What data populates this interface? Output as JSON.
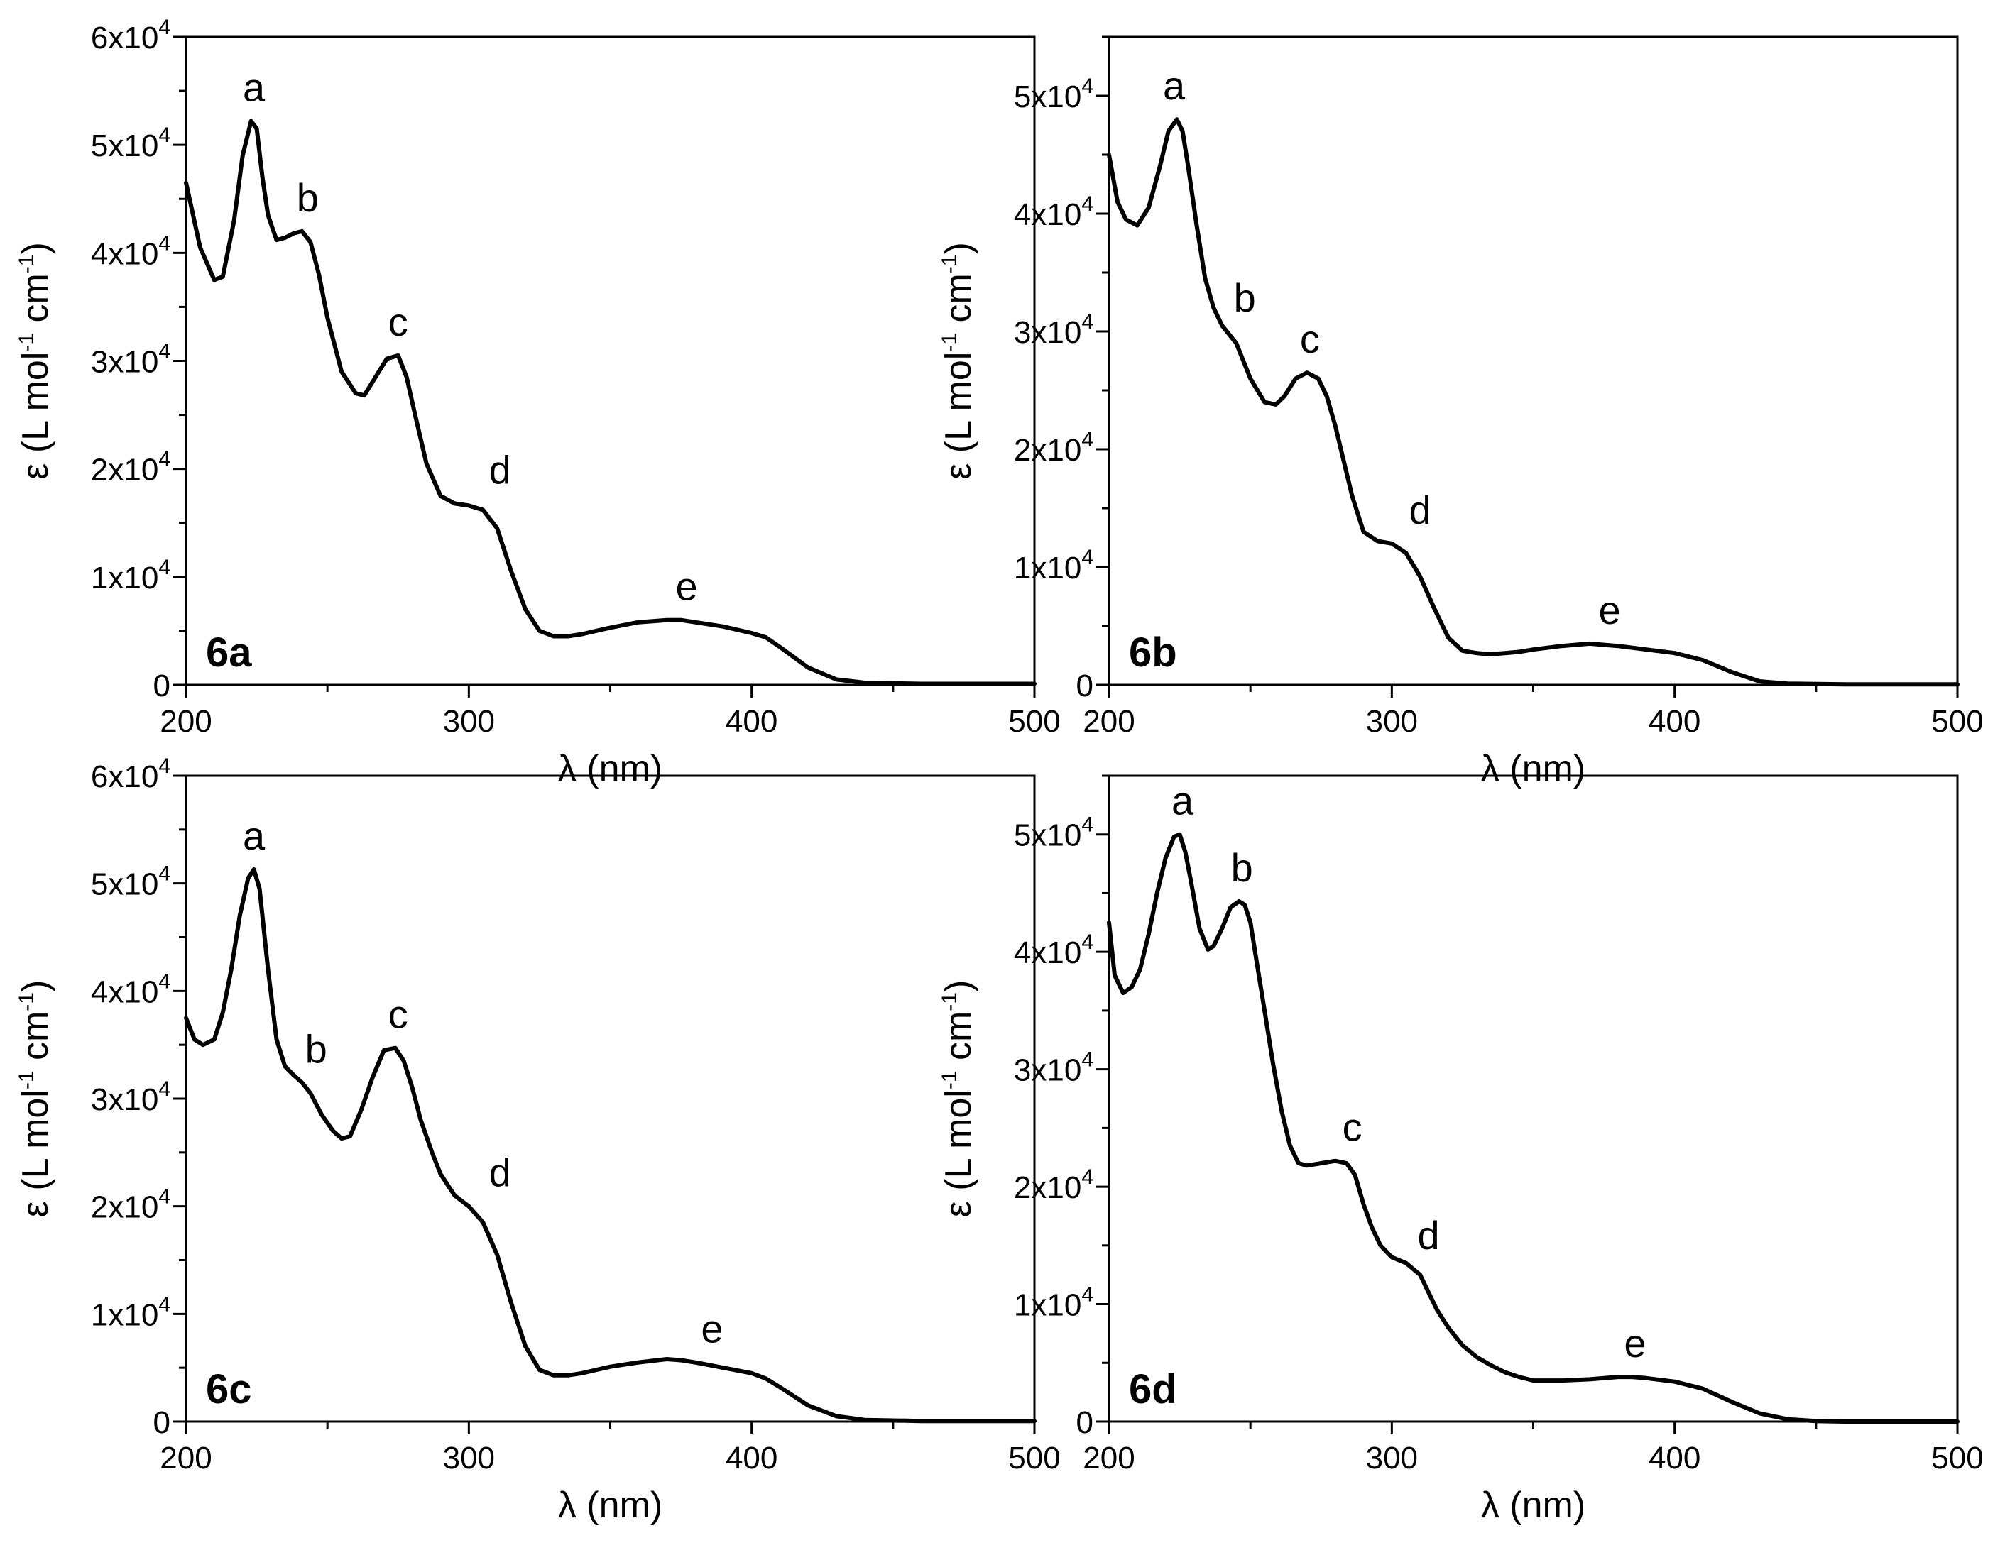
{
  "chart_data": [
    {
      "type": "line",
      "panel_label": "6a",
      "xlabel": "λ (nm)",
      "ylabel": "ε (L mol-1 cm-1)",
      "xlim": [
        200,
        500
      ],
      "ylim": [
        0,
        60000
      ],
      "x_ticks": [
        "200",
        "300",
        "400",
        "500"
      ],
      "y_ticks": [
        {
          "value": 0,
          "mant": "0",
          "exp": ""
        },
        {
          "value": 10000,
          "mant": "1x10",
          "exp": "4"
        },
        {
          "value": 20000,
          "mant": "2x10",
          "exp": "4"
        },
        {
          "value": 30000,
          "mant": "3x10",
          "exp": "4"
        },
        {
          "value": 40000,
          "mant": "4x10",
          "exp": "4"
        },
        {
          "value": 50000,
          "mant": "5x10",
          "exp": "4"
        },
        {
          "value": 60000,
          "mant": "6x10",
          "exp": "4"
        }
      ],
      "series": [
        {
          "name": "6a",
          "x": [
            200,
            205,
            210,
            213,
            217,
            220,
            223,
            225,
            227,
            229,
            232,
            235,
            238,
            241,
            244,
            247,
            250,
            255,
            260,
            263,
            267,
            271,
            275,
            278,
            281,
            285,
            290,
            295,
            300,
            305,
            310,
            315,
            320,
            325,
            330,
            335,
            340,
            345,
            350,
            360,
            370,
            375,
            380,
            390,
            400,
            405,
            410,
            420,
            430,
            440,
            450,
            460,
            480,
            500
          ],
          "y": [
            46500,
            40500,
            37500,
            37800,
            43000,
            49000,
            52200,
            51500,
            47000,
            43500,
            41200,
            41400,
            41800,
            42000,
            41000,
            38000,
            34000,
            29000,
            27000,
            26800,
            28500,
            30200,
            30500,
            28500,
            25000,
            20500,
            17500,
            16800,
            16600,
            16200,
            14500,
            10500,
            7000,
            5000,
            4500,
            4500,
            4700,
            5000,
            5300,
            5800,
            6000,
            6000,
            5800,
            5400,
            4800,
            4400,
            3500,
            1600,
            500,
            200,
            150,
            100,
            100,
            100
          ]
        }
      ],
      "annotations": [
        {
          "text": "a",
          "x": 224,
          "y": 52200
        },
        {
          "text": "b",
          "x": 243,
          "y": 42000
        },
        {
          "text": "c",
          "x": 275,
          "y": 30500
        },
        {
          "text": "d",
          "x": 311,
          "y": 16800
        },
        {
          "text": "e",
          "x": 377,
          "y": 6000
        }
      ]
    },
    {
      "type": "line",
      "panel_label": "6b",
      "xlabel": "λ (nm)",
      "ylabel": "ε (L mol-1 cm-1)",
      "xlim": [
        200,
        500
      ],
      "ylim": [
        0,
        55000
      ],
      "x_ticks": [
        "200",
        "300",
        "400",
        "500"
      ],
      "y_ticks": [
        {
          "value": 0,
          "mant": "0",
          "exp": ""
        },
        {
          "value": 10000,
          "mant": "1x10",
          "exp": "4"
        },
        {
          "value": 20000,
          "mant": "2x10",
          "exp": "4"
        },
        {
          "value": 30000,
          "mant": "3x10",
          "exp": "4"
        },
        {
          "value": 40000,
          "mant": "4x10",
          "exp": "4"
        },
        {
          "value": 50000,
          "mant": "5x10",
          "exp": "4"
        }
      ],
      "series": [
        {
          "name": "6b",
          "x": [
            200,
            203,
            206,
            210,
            214,
            218,
            221,
            224,
            226,
            228,
            231,
            234,
            237,
            240,
            245,
            250,
            255,
            259,
            262,
            266,
            270,
            274,
            277,
            280,
            283,
            286,
            290,
            295,
            300,
            305,
            310,
            315,
            320,
            325,
            330,
            335,
            340,
            345,
            350,
            360,
            370,
            375,
            380,
            390,
            400,
            410,
            420,
            430,
            440,
            460,
            480,
            500
          ],
          "y": [
            45000,
            41000,
            39500,
            39000,
            40500,
            44000,
            47000,
            48000,
            47000,
            44000,
            39000,
            34500,
            32000,
            30500,
            29000,
            26000,
            24000,
            23800,
            24500,
            26000,
            26500,
            26000,
            24500,
            22000,
            19000,
            16000,
            13000,
            12200,
            12000,
            11200,
            9200,
            6500,
            4000,
            2900,
            2700,
            2600,
            2700,
            2800,
            3000,
            3300,
            3500,
            3400,
            3300,
            3000,
            2700,
            2100,
            1100,
            300,
            100,
            50,
            50,
            50
          ]
        }
      ],
      "annotations": [
        {
          "text": "a",
          "x": 223,
          "y": 48000
        },
        {
          "text": "b",
          "x": 248,
          "y": 30000
        },
        {
          "text": "c",
          "x": 271,
          "y": 26500
        },
        {
          "text": "d",
          "x": 310,
          "y": 12000
        },
        {
          "text": "e",
          "x": 377,
          "y": 3500
        }
      ]
    },
    {
      "type": "line",
      "panel_label": "6c",
      "xlabel": "λ (nm)",
      "ylabel": "ε (L mol-1 cm-1)",
      "xlim": [
        200,
        500
      ],
      "ylim": [
        0,
        60000
      ],
      "x_ticks": [
        "200",
        "300",
        "400",
        "500"
      ],
      "y_ticks": [
        {
          "value": 0,
          "mant": "0",
          "exp": ""
        },
        {
          "value": 10000,
          "mant": "1x10",
          "exp": "4"
        },
        {
          "value": 20000,
          "mant": "2x10",
          "exp": "4"
        },
        {
          "value": 30000,
          "mant": "3x10",
          "exp": "4"
        },
        {
          "value": 40000,
          "mant": "4x10",
          "exp": "4"
        },
        {
          "value": 50000,
          "mant": "5x10",
          "exp": "4"
        },
        {
          "value": 60000,
          "mant": "6x10",
          "exp": "4"
        }
      ],
      "series": [
        {
          "name": "6c",
          "x": [
            200,
            203,
            206,
            210,
            213,
            216,
            219,
            222,
            224,
            226,
            229,
            232,
            235,
            238,
            241,
            244,
            248,
            252,
            255,
            258,
            262,
            266,
            270,
            274,
            277,
            280,
            283,
            287,
            290,
            295,
            300,
            305,
            310,
            315,
            320,
            325,
            330,
            335,
            340,
            345,
            350,
            360,
            370,
            375,
            380,
            390,
            400,
            405,
            410,
            420,
            430,
            440,
            460,
            480,
            500
          ],
          "y": [
            37500,
            35500,
            35000,
            35500,
            38000,
            42000,
            47000,
            50500,
            51300,
            49500,
            42000,
            35500,
            33000,
            32200,
            31500,
            30500,
            28500,
            27000,
            26300,
            26500,
            29000,
            32000,
            34500,
            34700,
            33500,
            31000,
            28000,
            25000,
            23000,
            21000,
            20000,
            18500,
            15500,
            11000,
            7000,
            4800,
            4300,
            4300,
            4500,
            4800,
            5100,
            5500,
            5800,
            5700,
            5500,
            5000,
            4500,
            4000,
            3200,
            1500,
            500,
            150,
            50,
            50,
            50
          ]
        }
      ],
      "annotations": [
        {
          "text": "a",
          "x": 224,
          "y": 51300
        },
        {
          "text": "b",
          "x": 246,
          "y": 31500
        },
        {
          "text": "c",
          "x": 275,
          "y": 34700
        },
        {
          "text": "d",
          "x": 311,
          "y": 20000
        },
        {
          "text": "e",
          "x": 386,
          "y": 5500
        }
      ]
    },
    {
      "type": "line",
      "panel_label": "6d",
      "xlabel": "λ (nm)",
      "ylabel": "ε (L mol-1 cm-1)",
      "xlim": [
        200,
        500
      ],
      "ylim": [
        0,
        55000
      ],
      "x_ticks": [
        "200",
        "300",
        "400",
        "500"
      ],
      "y_ticks": [
        {
          "value": 0,
          "mant": "0",
          "exp": ""
        },
        {
          "value": 10000,
          "mant": "1x10",
          "exp": "4"
        },
        {
          "value": 20000,
          "mant": "2x10",
          "exp": "4"
        },
        {
          "value": 30000,
          "mant": "3x10",
          "exp": "4"
        },
        {
          "value": 40000,
          "mant": "4x10",
          "exp": "4"
        },
        {
          "value": 50000,
          "mant": "5x10",
          "exp": "4"
        }
      ],
      "series": [
        {
          "name": "6d",
          "x": [
            200,
            202,
            205,
            208,
            211,
            214,
            217,
            220,
            223,
            225,
            227,
            229,
            232,
            235,
            237,
            240,
            243,
            246,
            248,
            250,
            252,
            255,
            258,
            261,
            264,
            267,
            270,
            275,
            280,
            284,
            287,
            290,
            293,
            296,
            300,
            305,
            310,
            313,
            316,
            320,
            325,
            330,
            335,
            340,
            345,
            350,
            360,
            370,
            380,
            385,
            390,
            400,
            410,
            420,
            430,
            440,
            450,
            460,
            480,
            500
          ],
          "y": [
            42500,
            38000,
            36500,
            37000,
            38500,
            41500,
            45000,
            48000,
            49800,
            50000,
            48500,
            46000,
            42000,
            40200,
            40500,
            42000,
            43800,
            44300,
            44000,
            42500,
            39500,
            35000,
            30500,
            26500,
            23500,
            22000,
            21800,
            22000,
            22200,
            22000,
            21000,
            18500,
            16500,
            15000,
            14000,
            13500,
            12500,
            11000,
            9500,
            8000,
            6500,
            5500,
            4800,
            4200,
            3800,
            3500,
            3500,
            3600,
            3800,
            3800,
            3700,
            3400,
            2800,
            1700,
            700,
            200,
            50,
            0,
            0,
            0
          ]
        }
      ],
      "annotations": [
        {
          "text": "a",
          "x": 226,
          "y": 50000
        },
        {
          "text": "b",
          "x": 247,
          "y": 44300
        },
        {
          "text": "c",
          "x": 286,
          "y": 22200
        },
        {
          "text": "d",
          "x": 313,
          "y": 13000
        },
        {
          "text": "e",
          "x": 386,
          "y": 3800
        }
      ]
    }
  ]
}
